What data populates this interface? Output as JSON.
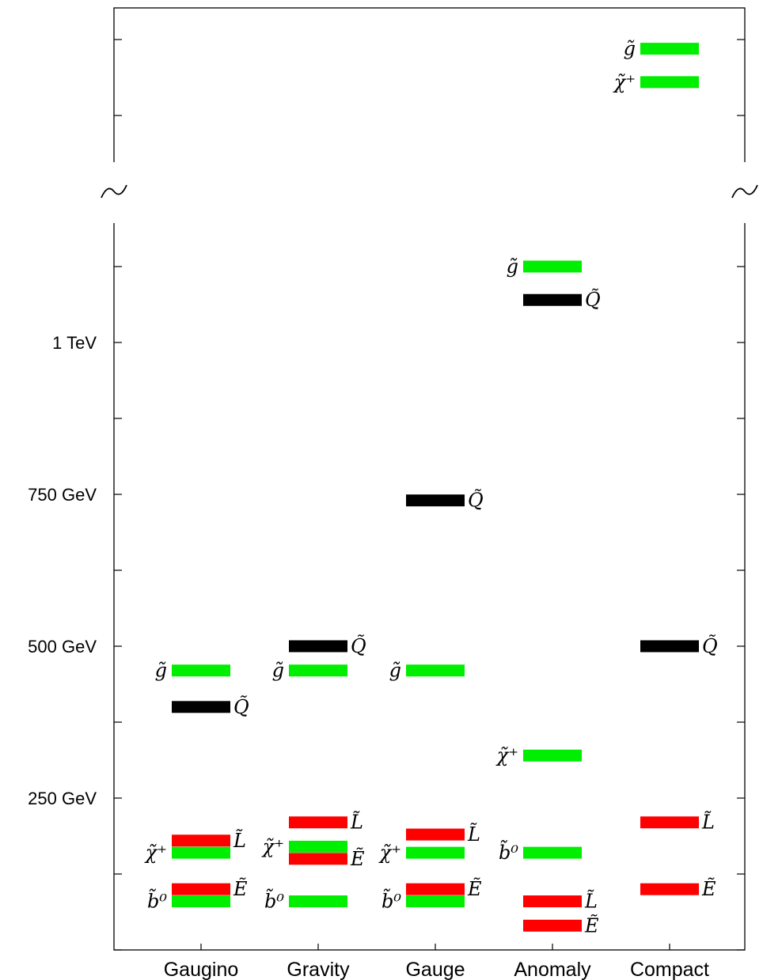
{
  "chart_data": {
    "type": "bar",
    "xlabel": "",
    "ylabel": "",
    "categories": [
      "Gaugino",
      "Gravity",
      "Gauge",
      "Anomaly",
      "Compact"
    ],
    "y_ticks": [
      {
        "value": 250,
        "label": "250 GeV"
      },
      {
        "value": 500,
        "label": "500 GeV"
      },
      {
        "value": 750,
        "label": "750 GeV"
      },
      {
        "value": 1000,
        "label": "1 TeV"
      }
    ],
    "ylim": [
      0,
      1500
    ],
    "axis_break": {
      "between": [
        1175,
        1300
      ]
    },
    "colors": {
      "green": "#00ee00",
      "red": "#ff0000",
      "black": "#000000"
    },
    "levels": [
      {
        "scenario": "Gaugino",
        "particle": "g̃",
        "value": 460,
        "color": "green",
        "label_side": "left"
      },
      {
        "scenario": "Gaugino",
        "particle": "Q̃",
        "value": 400,
        "color": "black",
        "label_side": "right"
      },
      {
        "scenario": "Gaugino",
        "particle": "L̃",
        "value": 180,
        "color": "red",
        "label_side": "right"
      },
      {
        "scenario": "Gaugino",
        "particle": "χ̃⁺",
        "value": 160,
        "color": "green",
        "label_side": "left"
      },
      {
        "scenario": "Gaugino",
        "particle": "Ẽ",
        "value": 100,
        "color": "red",
        "label_side": "right"
      },
      {
        "scenario": "Gaugino",
        "particle": "b̃⁰",
        "value": 80,
        "color": "green",
        "label_side": "left"
      },
      {
        "scenario": "Gravity",
        "particle": "Q̃",
        "value": 500,
        "color": "black",
        "label_side": "right"
      },
      {
        "scenario": "Gravity",
        "particle": "g̃",
        "value": 460,
        "color": "green",
        "label_side": "left"
      },
      {
        "scenario": "Gravity",
        "particle": "L̃",
        "value": 210,
        "color": "red",
        "label_side": "right"
      },
      {
        "scenario": "Gravity",
        "particle": "χ̃⁺",
        "value": 170,
        "color": "green",
        "label_side": "left"
      },
      {
        "scenario": "Gravity",
        "particle": "Ẽ",
        "value": 150,
        "color": "red",
        "label_side": "right"
      },
      {
        "scenario": "Gravity",
        "particle": "b̃⁰",
        "value": 80,
        "color": "green",
        "label_side": "left"
      },
      {
        "scenario": "Gauge",
        "particle": "Q̃",
        "value": 740,
        "color": "black",
        "label_side": "right"
      },
      {
        "scenario": "Gauge",
        "particle": "g̃",
        "value": 460,
        "color": "green",
        "label_side": "left"
      },
      {
        "scenario": "Gauge",
        "particle": "L̃",
        "value": 190,
        "color": "red",
        "label_side": "right"
      },
      {
        "scenario": "Gauge",
        "particle": "χ̃⁺",
        "value": 160,
        "color": "green",
        "label_side": "left"
      },
      {
        "scenario": "Gauge",
        "particle": "Ẽ",
        "value": 100,
        "color": "red",
        "label_side": "right"
      },
      {
        "scenario": "Gauge",
        "particle": "b̃⁰",
        "value": 80,
        "color": "green",
        "label_side": "left"
      },
      {
        "scenario": "Anomaly",
        "particle": "g̃",
        "value": 1125,
        "color": "green",
        "label_side": "left"
      },
      {
        "scenario": "Anomaly",
        "particle": "Q̃",
        "value": 1070,
        "color": "black",
        "label_side": "right"
      },
      {
        "scenario": "Anomaly",
        "particle": "χ̃⁺",
        "value": 320,
        "color": "green",
        "label_side": "left"
      },
      {
        "scenario": "Anomaly",
        "particle": "b̃⁰",
        "value": 160,
        "color": "green",
        "label_side": "left"
      },
      {
        "scenario": "Anomaly",
        "particle": "L̃",
        "value": 80,
        "color": "red",
        "label_side": "right"
      },
      {
        "scenario": "Anomaly",
        "particle": "Ẽ",
        "value": 40,
        "color": "red",
        "label_side": "right"
      },
      {
        "scenario": "Compact",
        "particle": "g̃",
        "value": 1475,
        "color": "green",
        "label_side": "left"
      },
      {
        "scenario": "Compact",
        "particle": "χ̃⁺",
        "value": 1420,
        "color": "green",
        "label_side": "left"
      },
      {
        "scenario": "Compact",
        "particle": "Q̃",
        "value": 500,
        "color": "black",
        "label_side": "right"
      },
      {
        "scenario": "Compact",
        "particle": "L̃",
        "value": 210,
        "color": "red",
        "label_side": "right"
      },
      {
        "scenario": "Compact",
        "particle": "Ẽ",
        "value": 100,
        "color": "red",
        "label_side": "right"
      }
    ]
  }
}
